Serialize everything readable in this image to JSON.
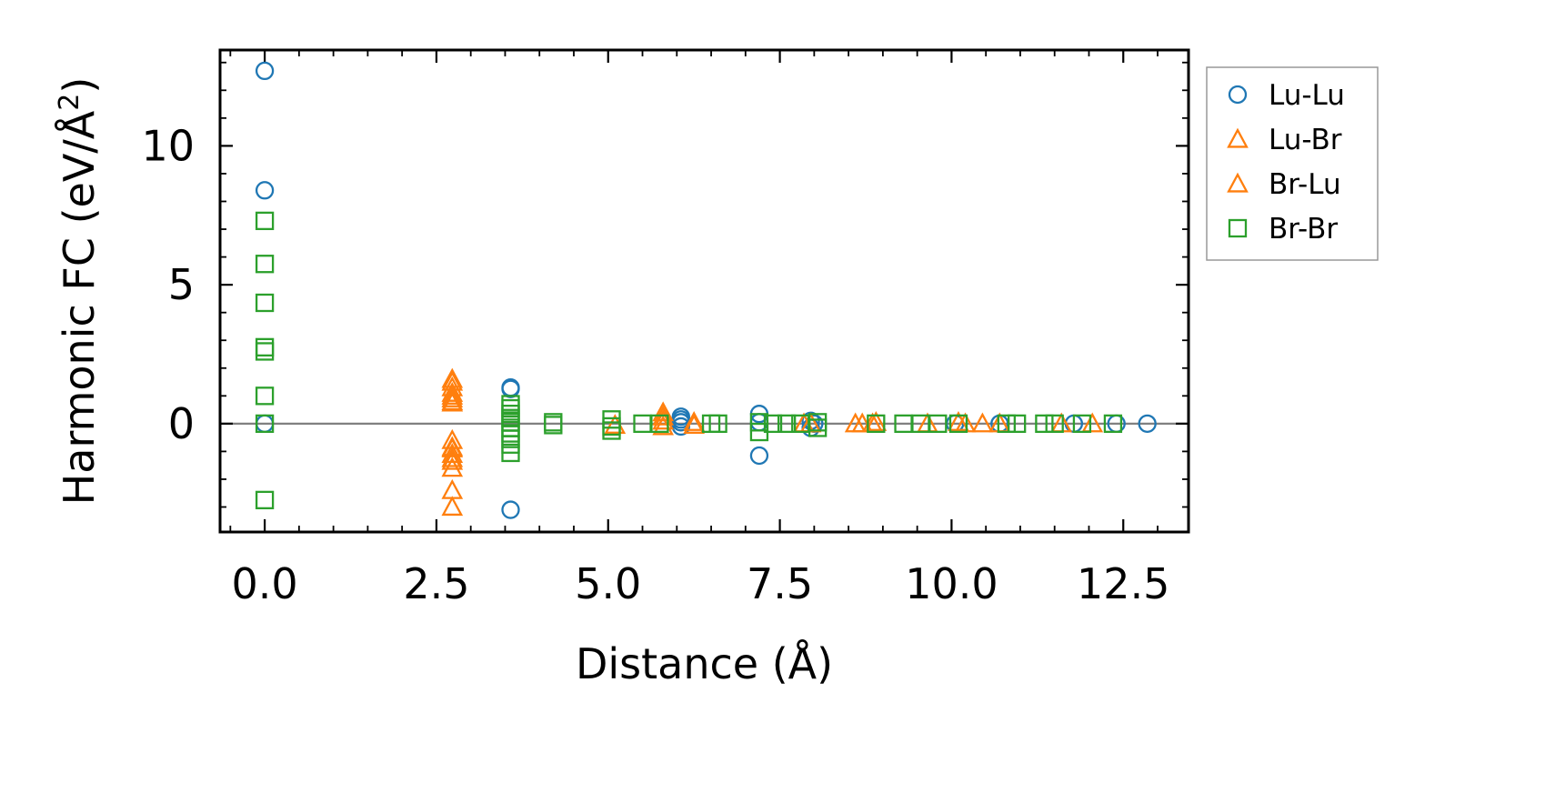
{
  "chart_data": {
    "type": "scatter",
    "xlabel": "Distance (Å)",
    "ylabel_main": "Harmonic FC (eV/Å",
    "ylabel_sup": "2",
    "ylabel_close": ")",
    "xlim": [
      -0.65,
      13.45
    ],
    "ylim": [
      -3.9,
      13.45
    ],
    "xticks": [
      0.0,
      2.5,
      5.0,
      7.5,
      10.0,
      12.5
    ],
    "xtick_labels": [
      "0.0",
      "2.5",
      "5.0",
      "7.5",
      "10.0",
      "12.5"
    ],
    "yticks": [
      0,
      5,
      10
    ],
    "ytick_labels": [
      "0",
      "5",
      "10"
    ],
    "x_minor_step": 0.5,
    "y_minor_step": 1,
    "zero_line": true,
    "grid": false,
    "legend_position": "outside-right-top",
    "series": [
      {
        "name": "Lu-Lu",
        "marker": "circle",
        "color": "#1f77b4",
        "x": [
          0.0,
          0.0,
          0.0,
          3.58,
          3.58,
          3.58,
          6.06,
          6.06,
          6.06,
          6.06,
          7.2,
          7.2,
          7.2,
          7.95,
          7.95,
          8.0,
          10.05,
          10.7,
          11.78,
          12.4,
          12.85
        ],
        "y": [
          12.7,
          8.4,
          0.0,
          1.3,
          1.25,
          -3.1,
          0.25,
          0.15,
          -0.1,
          0.05,
          0.35,
          0.05,
          -1.15,
          0.1,
          -0.15,
          0.0,
          0.0,
          0.0,
          0.0,
          0.0,
          0.0
        ]
      },
      {
        "name": "Lu-Br",
        "marker": "triangle",
        "color": "#ff7f0e",
        "x": [
          2.73,
          2.73,
          2.73,
          2.73,
          2.73,
          2.73,
          2.73,
          2.73,
          2.73,
          2.73,
          2.73,
          5.1,
          5.8,
          5.8,
          5.8,
          6.25,
          6.25,
          7.95,
          8.6,
          8.7,
          8.9,
          9.65,
          10.1,
          10.45,
          10.7,
          11.6,
          12.05
        ],
        "y": [
          1.5,
          1.3,
          1.1,
          0.9,
          0.75,
          -0.6,
          -0.85,
          -1.1,
          -1.35,
          -1.6,
          -3.0,
          -0.05,
          0.4,
          0.1,
          -0.1,
          0.05,
          -0.05,
          0.0,
          0.0,
          0.0,
          0.05,
          0.0,
          0.05,
          0.0,
          0.0,
          0.0,
          0.0
        ]
      },
      {
        "name": "Br-Lu",
        "marker": "triangle",
        "color": "#ff7f0e",
        "x": [
          2.73,
          2.73,
          2.73,
          2.73,
          2.73,
          2.73,
          5.8,
          7.85,
          8.85,
          10.2
        ],
        "y": [
          1.6,
          1.0,
          0.8,
          -0.9,
          -1.25,
          -2.4,
          0.25,
          0.0,
          0.0,
          0.0
        ]
      },
      {
        "name": "Br-Br",
        "marker": "square",
        "color": "#2ca02c",
        "x": [
          0.0,
          0.0,
          0.0,
          0.0,
          0.0,
          0.0,
          0.0,
          0.0,
          3.58,
          3.58,
          3.58,
          3.58,
          3.58,
          3.58,
          3.58,
          3.58,
          3.58,
          3.58,
          4.2,
          4.2,
          5.05,
          5.05,
          5.05,
          5.5,
          5.75,
          6.5,
          6.6,
          7.2,
          7.2,
          7.4,
          7.6,
          7.8,
          8.05,
          8.05,
          8.9,
          9.3,
          9.55,
          9.8,
          10.1,
          10.8,
          10.95,
          11.35,
          11.5,
          11.9,
          12.35
        ],
        "y": [
          7.3,
          5.75,
          4.35,
          2.75,
          2.6,
          1.0,
          0.0,
          -2.75,
          0.7,
          0.55,
          0.35,
          0.2,
          0.05,
          -0.15,
          -0.35,
          -0.55,
          -0.75,
          -1.05,
          0.05,
          -0.05,
          0.15,
          -0.1,
          -0.25,
          0.0,
          0.0,
          0.0,
          0.0,
          0.05,
          -0.3,
          0.0,
          0.0,
          0.0,
          0.05,
          -0.15,
          0.0,
          0.0,
          0.0,
          0.0,
          0.0,
          0.0,
          0.0,
          0.0,
          0.0,
          0.0,
          0.0
        ]
      }
    ]
  }
}
